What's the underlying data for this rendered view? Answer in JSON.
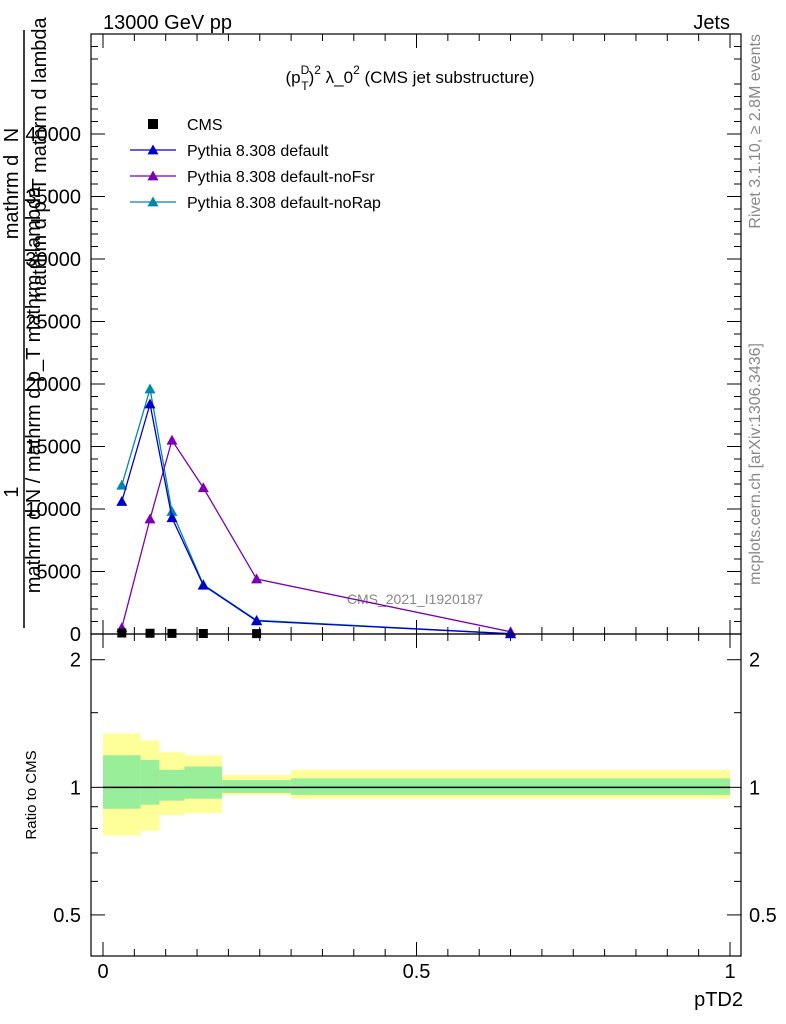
{
  "header": {
    "left": "13000 GeV pp",
    "right": "Jets"
  },
  "side": {
    "rivet": "Rivet 3.1.10, ≥ 2.8M events",
    "mcplots": "mcplots.cern.ch [arXiv:1306.3436]"
  },
  "watermark": "CMS_2021_I1920187",
  "title": {
    "pre": "(p",
    "sup_d": "D",
    "sub_t": "T",
    "sup_2": "2",
    "mid": " λ_0",
    "sup_2b": "2",
    "post": " (CMS jet substructure)"
  },
  "ylabel": {
    "one": "1",
    "den": "mathrm d N / mathrm d p_T mathrm d lambda",
    "num": "mathrm d",
    "num2": "N",
    "den2": "mathrm d p_T mathrm d lambda"
  },
  "ratio_ylabel": "Ratio to CMS",
  "xlabel": "pTD2",
  "colors": {
    "cms": "#000000",
    "default": "#0000cc",
    "noFsr": "#7b00b3",
    "noRap": "#0088aa",
    "band_yellow": "#ffff99",
    "band_green": "#99ee99"
  },
  "chart_data": [
    {
      "type": "line",
      "xlim": [
        0,
        1
      ],
      "ylim": [
        0,
        48000
      ],
      "yticks": [
        "0",
        "5000",
        "10000",
        "15000",
        "20000",
        "25000",
        "30000",
        "35000",
        "40000"
      ],
      "ytick_values": [
        0,
        5000,
        10000,
        15000,
        20000,
        25000,
        30000,
        35000,
        40000
      ],
      "legend_position": "top-left",
      "series": [
        {
          "name": "CMS",
          "marker": "square",
          "x": [
            0.03,
            0.075,
            0.11,
            0.16,
            0.245
          ],
          "y": [
            80,
            60,
            50,
            40,
            30
          ]
        },
        {
          "name": "Pythia 8.308 default",
          "marker": "triangle",
          "x": [
            0.03,
            0.075,
            0.11,
            0.16,
            0.245,
            0.65
          ],
          "y": [
            10600,
            18400,
            9300,
            3900,
            1050,
            20
          ]
        },
        {
          "name": "Pythia 8.308 default-noFsr",
          "marker": "triangle",
          "x": [
            0.03,
            0.075,
            0.11,
            0.16,
            0.245,
            0.65
          ],
          "y": [
            500,
            9200,
            15500,
            11700,
            4400,
            180
          ]
        },
        {
          "name": "Pythia 8.308 default-noRap",
          "marker": "triangle",
          "x": [
            0.03,
            0.075,
            0.11,
            0.16,
            0.245,
            0.65
          ],
          "y": [
            11900,
            19600,
            9800,
            3950,
            1100,
            20
          ]
        }
      ]
    },
    {
      "type": "area",
      "xlim": [
        0,
        1
      ],
      "ylim": [
        0.4,
        2.3
      ],
      "log_scale_y": true,
      "yticks": [
        "0.5",
        "1",
        "2"
      ],
      "ytick_values": [
        0.5,
        1,
        2
      ],
      "xticks": [
        "0",
        "0.5",
        "1"
      ],
      "xtick_values": [
        0,
        0.5,
        1
      ],
      "reference_line": 1,
      "bins": [
        {
          "x0": 0.0,
          "x1": 0.06,
          "yellow": [
            0.77,
            1.34
          ],
          "green": [
            0.89,
            1.19
          ]
        },
        {
          "x0": 0.06,
          "x1": 0.09,
          "yellow": [
            0.79,
            1.29
          ],
          "green": [
            0.91,
            1.16
          ]
        },
        {
          "x0": 0.09,
          "x1": 0.13,
          "yellow": [
            0.86,
            1.21
          ],
          "green": [
            0.93,
            1.1
          ]
        },
        {
          "x0": 0.13,
          "x1": 0.19,
          "yellow": [
            0.87,
            1.19
          ],
          "green": [
            0.94,
            1.12
          ]
        },
        {
          "x0": 0.19,
          "x1": 0.3,
          "yellow": [
            0.96,
            1.07
          ],
          "green": [
            0.97,
            1.04
          ]
        },
        {
          "x0": 0.3,
          "x1": 1.0,
          "yellow": [
            0.94,
            1.1
          ],
          "green": [
            0.96,
            1.05
          ]
        }
      ]
    }
  ]
}
